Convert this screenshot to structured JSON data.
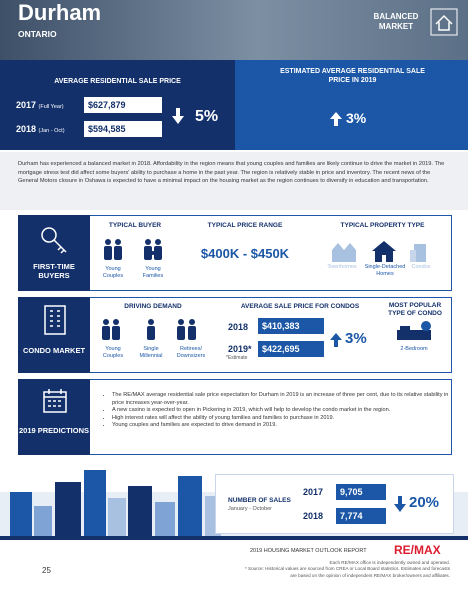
{
  "header": {
    "title": "Durham",
    "subtitle": "ONTARIO",
    "badge": "BALANCED MARKET"
  },
  "sale_price": {
    "title": "AVERAGE RESIDENTIAL SALE PRICE",
    "rows": [
      {
        "year": "2017",
        "period": "(Full Year)",
        "price": "$627,879"
      },
      {
        "year": "2018",
        "period": "(Jan - Oct)",
        "price": "$594,585"
      }
    ],
    "change": "5%",
    "estimate_title": "ESTIMATED AVERAGE RESIDENTIAL SALE PRICE IN 2019",
    "estimate_change": "3%"
  },
  "summary": "Durham has experienced a balanced market in 2018. Affordability in the region means that young couples and families are likely continue to drive the market in 2019. The mortgage stress test did affect some buyers' ability to purchase a home in the past year. The region is relatively stable in price and inventory. The recent news of the General Motors closure in Oshawa is expected to have a minimal impact on the housing market as the region continues to diversify in education and transportation.",
  "first_time_buyers": {
    "label": "FIRST-TIME BUYERS",
    "buyer_title": "TYPICAL BUYER",
    "buyers": [
      "Young Couples",
      "Young Families"
    ],
    "price_title": "TYPICAL PRICE RANGE",
    "price_range": "$400K - $450K",
    "property_title": "TYPICAL PROPERTY TYPE",
    "properties": [
      "Townhomes",
      "Single-Detached Homes",
      "Condos"
    ]
  },
  "condo_market": {
    "label": "CONDO MARKET",
    "demand_title": "DRIVING DEMAND",
    "demand": [
      "Young Couples",
      "Single Millennial",
      "Retirees/ Downsizers"
    ],
    "price_title": "AVERAGE SALE PRICE FOR CONDOS",
    "rows": [
      {
        "year": "2018",
        "price": "$410,383"
      },
      {
        "year": "2019*",
        "price": "$422,695"
      }
    ],
    "estimate_note": "*Estimate",
    "change": "3%",
    "popular_title": "MOST POPULAR TYPE OF CONDO",
    "popular": "2-Bedroom"
  },
  "predictions": {
    "label": "2019 PREDICTIONS",
    "items": [
      "The RE/MAX average residential sale price expectation for Durham in 2019 is an increase of three per cent, due to its relative stability in price increases year-over-year.",
      "A new casino is expected to open in Pickering in 2019, which will help to develop the condo market in the region.",
      "High interest rates will affect the ability of young families and families to purchase in 2019.",
      "Young couples and families are expected to drive demand in 2019."
    ]
  },
  "sales": {
    "title": "NUMBER OF SALES",
    "period": "January - October",
    "rows": [
      {
        "year": "2017",
        "value": "9,705"
      },
      {
        "year": "2018",
        "value": "7,774"
      }
    ],
    "change": "20%"
  },
  "footer": {
    "report": "2019 HOUSING MARKET OUTLOOK REPORT",
    "brand": "RE/MAX",
    "page": "25",
    "note1": "Each RE/MAX office is independently owned and operated.",
    "note2": "* Source: Historical values are sourced from CREA or Local Board statistics. Estimates and forecasts are based on the opinion of independent RE/MAX broker/owners and affiliates."
  }
}
